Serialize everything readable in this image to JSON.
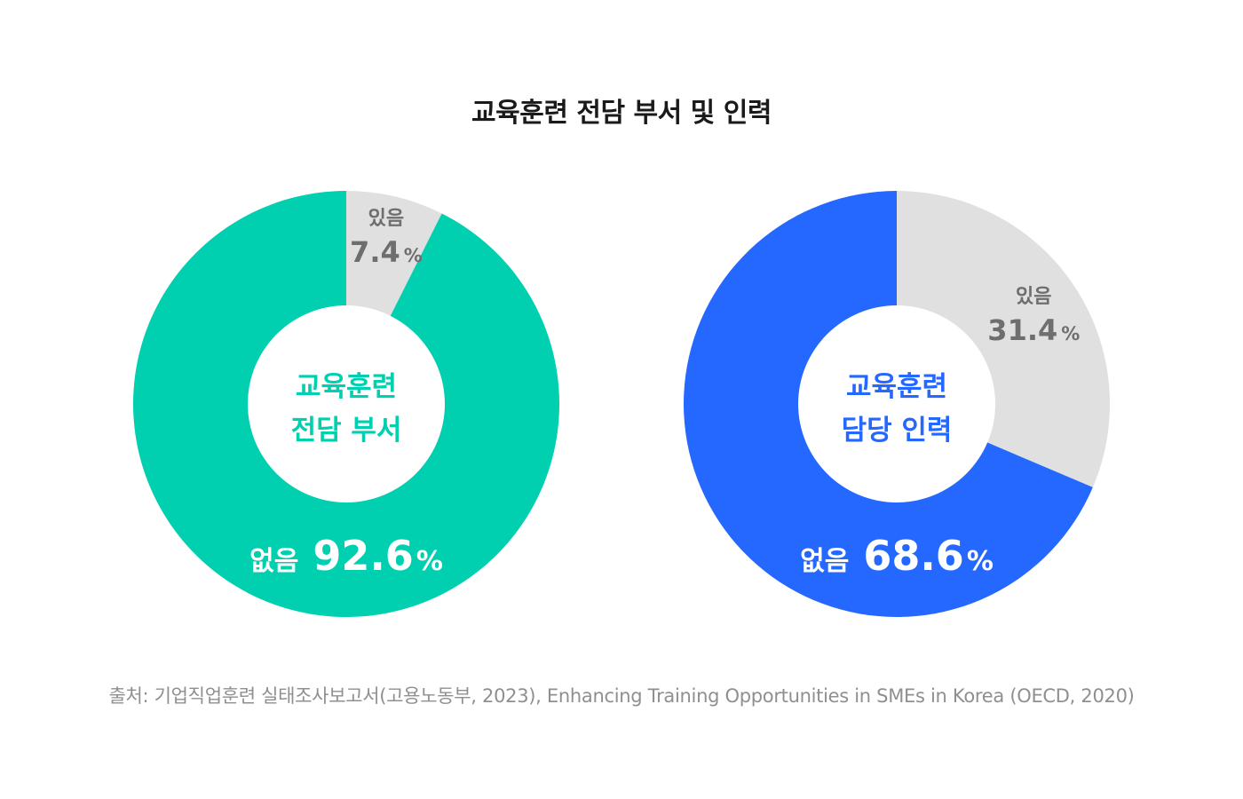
{
  "title": "교육훈련 전담 부서 및 인력",
  "source": "출처: 기업직업훈련 실태조사보고서(고용노동부, 2023), Enhancing Training Opportunities in SMEs in Korea (OECD, 2020)",
  "colors": {
    "yes_slice": "#e0e0e0",
    "yes_text": "#6e6e6e",
    "chart1_accent": "#00cfb0",
    "chart2_accent": "#2468ff",
    "hole": "#ffffff",
    "no_text": "#ffffff"
  },
  "chart_data": [
    {
      "type": "pie",
      "variant": "donut",
      "center_label": [
        "교육훈련",
        "전담 부서"
      ],
      "slices": [
        {
          "label": "있음",
          "value": 7.4,
          "value_text": "7.4"
        },
        {
          "label": "없음",
          "value": 92.6,
          "value_text": "92.6"
        }
      ],
      "unit": "%"
    },
    {
      "type": "pie",
      "variant": "donut",
      "center_label": [
        "교육훈련",
        "담당 인력"
      ],
      "slices": [
        {
          "label": "있음",
          "value": 31.4,
          "value_text": "31.4"
        },
        {
          "label": "없음",
          "value": 68.6,
          "value_text": "68.6"
        }
      ],
      "unit": "%"
    }
  ]
}
